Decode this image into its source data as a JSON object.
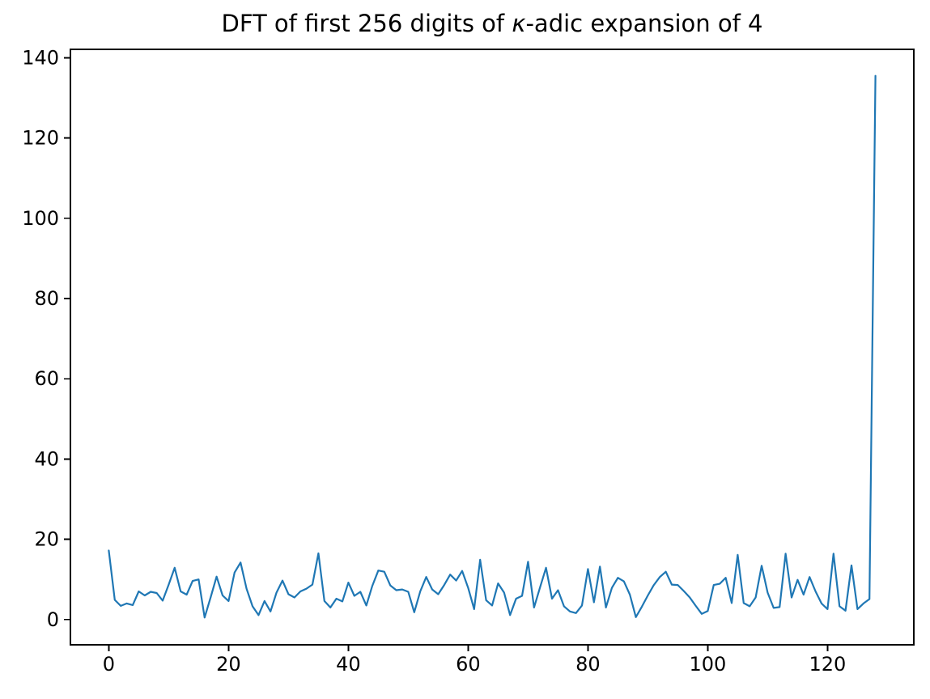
{
  "figure": {
    "title_prefix": "DFT of first 256 digits of ",
    "title_kappa": "κ",
    "title_suffix": "-adic expansion of 4",
    "background_color": "#ffffff",
    "spine_color": "#000000",
    "text_color": "#000000"
  },
  "chart_data": {
    "type": "line",
    "title": "DFT of first 256 digits of κ-adic expansion of 4",
    "xlabel": "",
    "ylabel": "",
    "legend": null,
    "grid": false,
    "line_color": "#1f77b4",
    "x_ticks": [
      0,
      20,
      40,
      60,
      80,
      100,
      120
    ],
    "y_ticks": [
      0,
      20,
      40,
      60,
      80,
      100,
      120,
      140
    ],
    "xlim": [
      -6.4,
      134.4
    ],
    "ylim": [
      -6.3,
      142.1
    ],
    "x_start": 0,
    "x_step": 1,
    "values": [
      17.2,
      4.9,
      3.4,
      4.0,
      3.6,
      7.0,
      6.0,
      6.9,
      6.6,
      4.7,
      8.7,
      12.9,
      7.0,
      6.2,
      9.6,
      10.0,
      0.5,
      5.5,
      10.7,
      6.0,
      4.6,
      11.7,
      14.2,
      7.7,
      3.3,
      1.1,
      4.6,
      2.0,
      6.7,
      9.7,
      6.3,
      5.5,
      7.0,
      7.7,
      8.7,
      16.5,
      4.6,
      3.0,
      5.2,
      4.5,
      9.2,
      5.9,
      6.9,
      3.5,
      8.4,
      12.2,
      11.9,
      8.5,
      7.3,
      7.5,
      6.9,
      1.8,
      7.0,
      10.6,
      7.5,
      6.3,
      8.6,
      11.2,
      9.7,
      12.1,
      7.9,
      2.6,
      14.9,
      4.8,
      3.5,
      9.0,
      6.7,
      1.1,
      5.2,
      5.9,
      14.4,
      3.0,
      8.0,
      12.9,
      5.2,
      7.3,
      3.3,
      2.0,
      1.6,
      3.5,
      12.6,
      4.3,
      13.2,
      3.0,
      7.9,
      10.4,
      9.5,
      6.2,
      0.6,
      3.2,
      6.0,
      8.6,
      10.6,
      11.9,
      8.7,
      8.6,
      7.1,
      5.5,
      3.4,
      1.4,
      2.1,
      8.6,
      8.9,
      10.4,
      4.1,
      16.1,
      4.1,
      3.3,
      5.5,
      13.4,
      6.7,
      2.9,
      3.1,
      16.4,
      5.5,
      9.9,
      6.2,
      10.6,
      7.0,
      4.0,
      2.6,
      16.4,
      3.3,
      2.2,
      13.5,
      2.6,
      4.0,
      5.1,
      135.5
    ]
  }
}
